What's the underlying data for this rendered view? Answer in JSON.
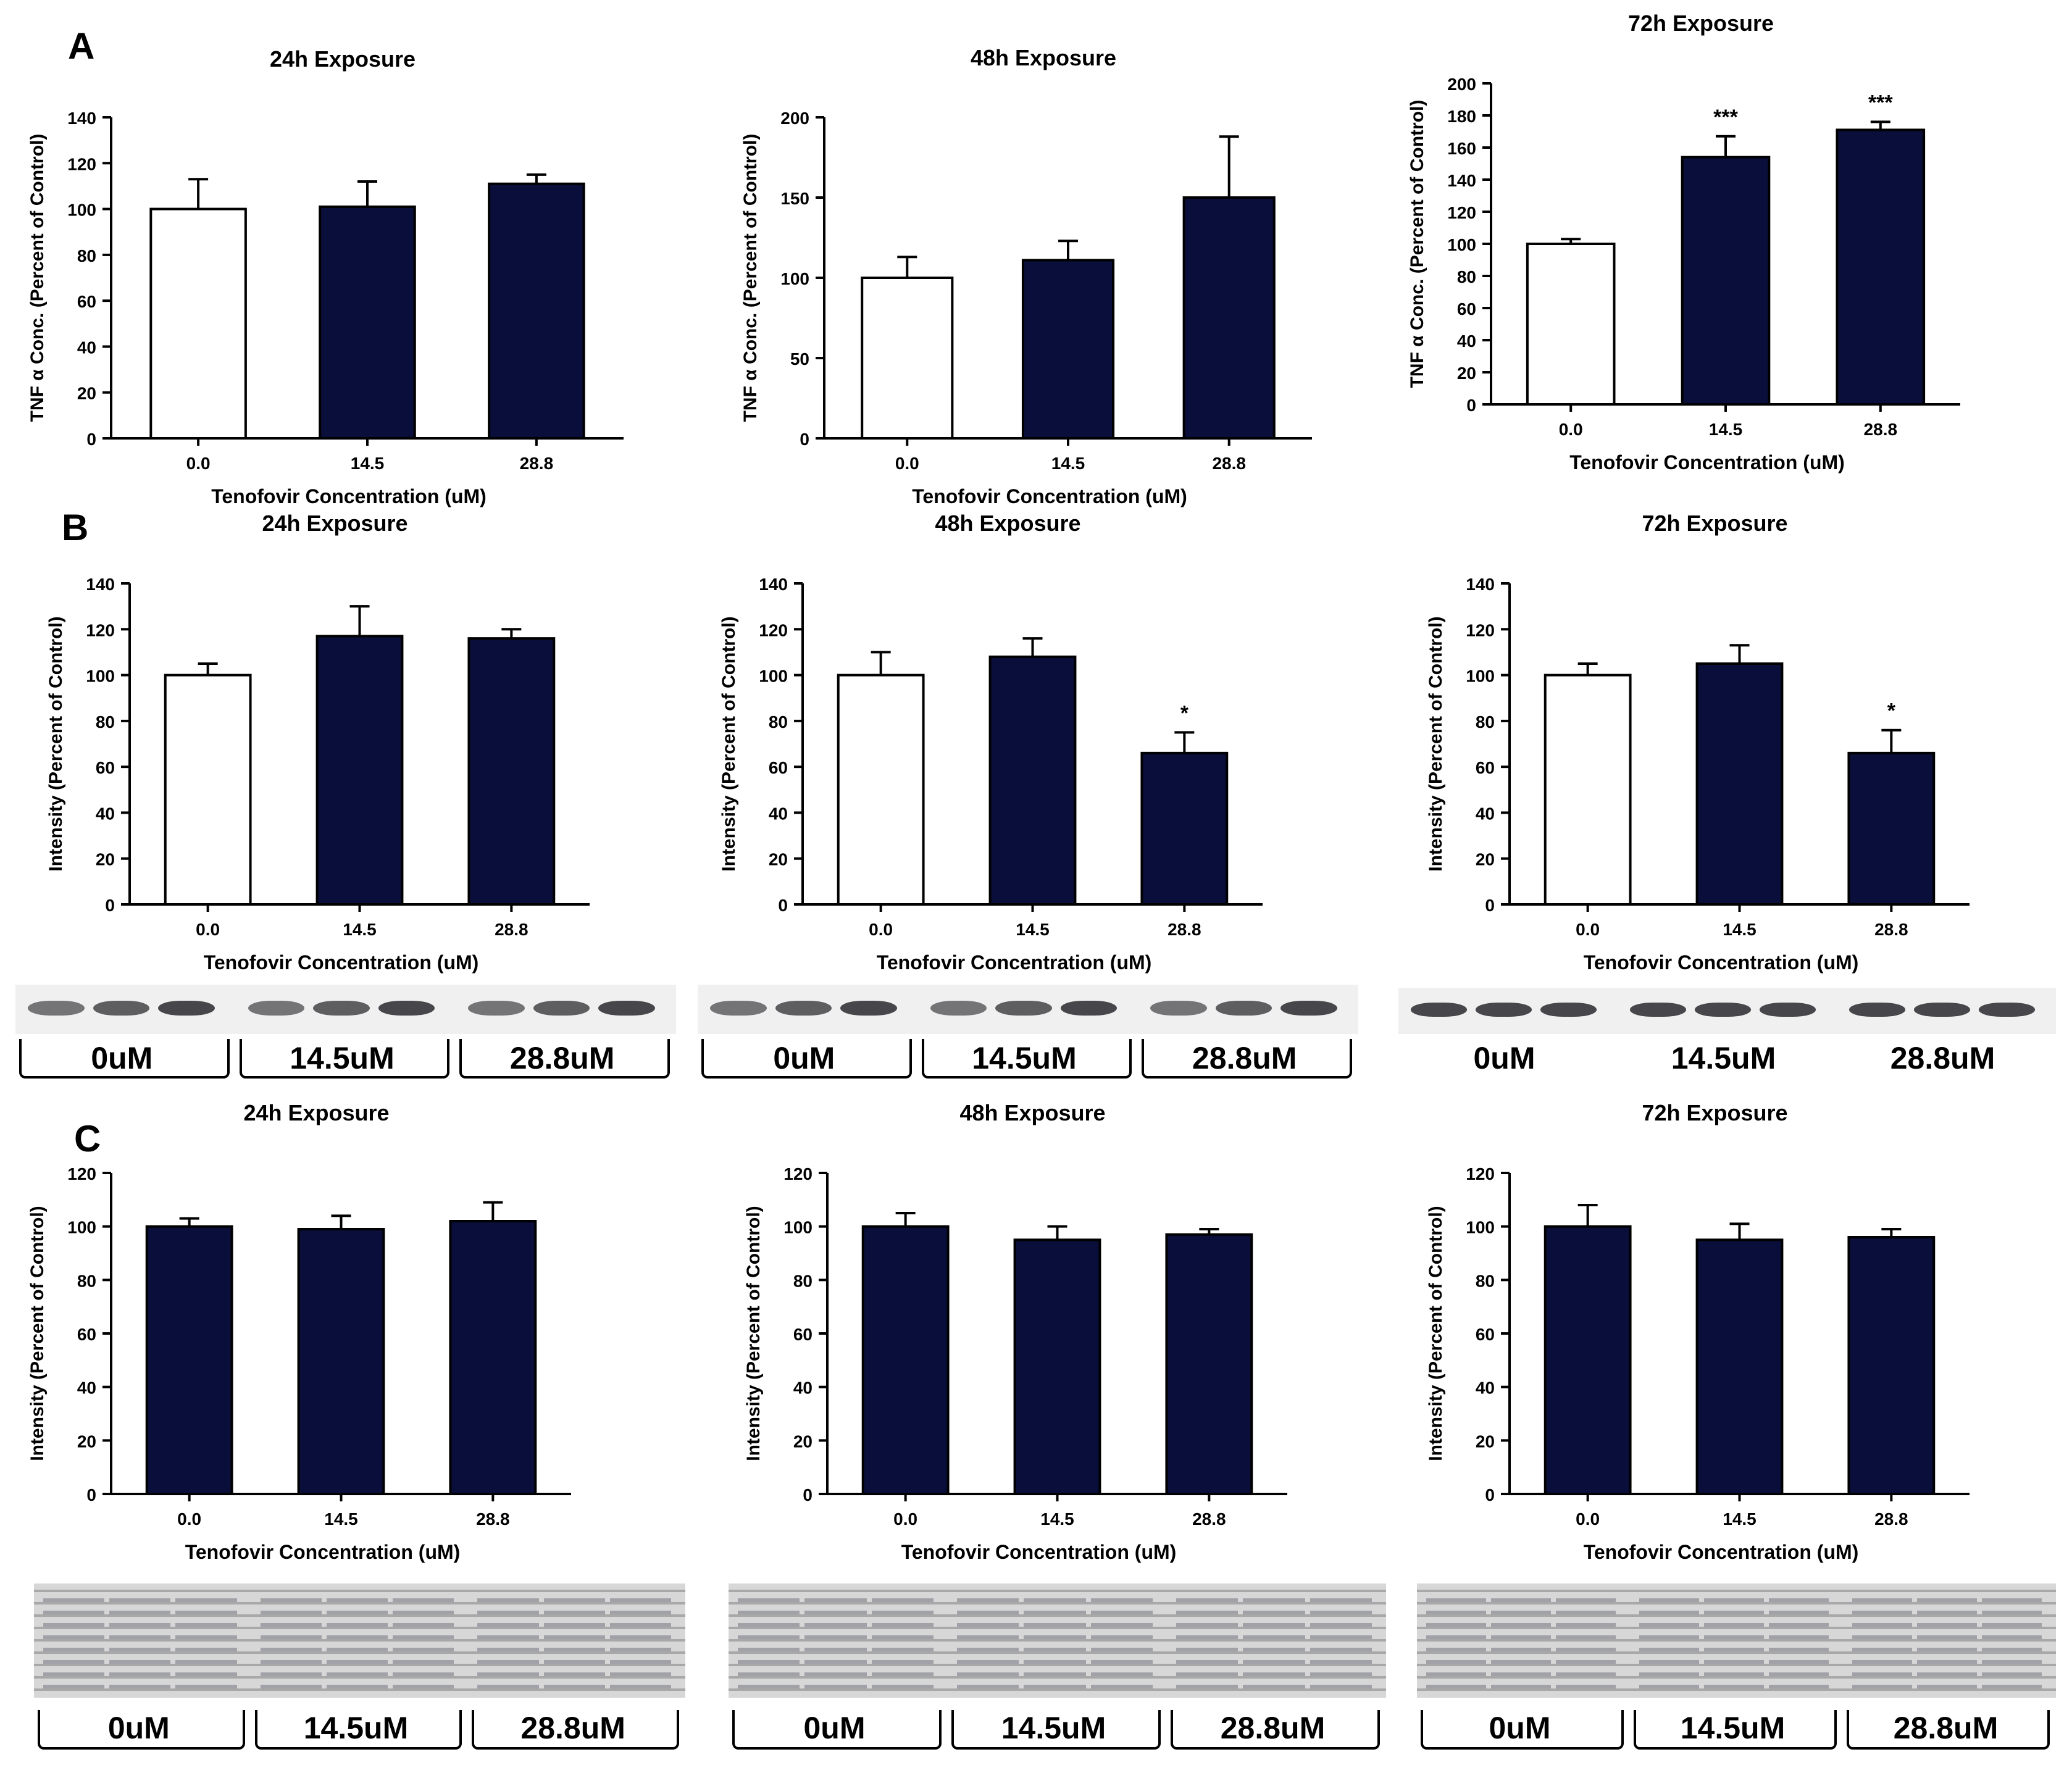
{
  "panel_letters": {
    "a": "A",
    "b": "B",
    "c": "C"
  },
  "colors": {
    "filled_bar": "#0a0e3a",
    "control_bar": "#ffffff",
    "axis": "#000000"
  },
  "chart_data": [
    {
      "id": "A1",
      "type": "bar",
      "title": "24h Exposure",
      "xlabel": "Tenofovir Concentration (uM)",
      "ylabel": "TNF α Conc. (Percent of Control)",
      "categories": [
        "0.0",
        "14.5",
        "28.8"
      ],
      "values": [
        100,
        101,
        111
      ],
      "errors": [
        13,
        11,
        4
      ],
      "fills": [
        "white",
        "dark",
        "dark"
      ],
      "annotations": [
        "",
        "",
        ""
      ],
      "ylim": [
        0,
        140
      ],
      "yticks": [
        0,
        20,
        40,
        60,
        80,
        100,
        120,
        140
      ]
    },
    {
      "id": "A2",
      "type": "bar",
      "title": "48h Exposure",
      "xlabel": "Tenofovir Concentration (uM)",
      "ylabel": "TNF α Conc. (Percent of Control)",
      "categories": [
        "0.0",
        "14.5",
        "28.8"
      ],
      "values": [
        100,
        111,
        150
      ],
      "errors": [
        13,
        12,
        38
      ],
      "fills": [
        "white",
        "dark",
        "dark"
      ],
      "annotations": [
        "",
        "",
        ""
      ],
      "ylim": [
        0,
        200
      ],
      "yticks": [
        0,
        50,
        100,
        150,
        200
      ]
    },
    {
      "id": "A3",
      "type": "bar",
      "title": "72h Exposure",
      "xlabel": "Tenofovir Concentration (uM)",
      "ylabel": "TNF α Conc. (Percent of Control)",
      "categories": [
        "0.0",
        "14.5",
        "28.8"
      ],
      "values": [
        100,
        154,
        171
      ],
      "errors": [
        3,
        13,
        5
      ],
      "fills": [
        "white",
        "dark",
        "dark"
      ],
      "annotations": [
        "",
        "***",
        "***"
      ],
      "ylim": [
        0,
        200
      ],
      "yticks": [
        0,
        20,
        40,
        60,
        80,
        100,
        120,
        140,
        160,
        180,
        200
      ]
    },
    {
      "id": "B1",
      "type": "bar",
      "title": "24h Exposure",
      "xlabel": "Tenofovir Concentration (uM)",
      "ylabel": "Intensity (Percent of Control)",
      "categories": [
        "0.0",
        "14.5",
        "28.8"
      ],
      "values": [
        100,
        117,
        116
      ],
      "errors": [
        5,
        13,
        4
      ],
      "fills": [
        "white",
        "dark",
        "dark"
      ],
      "annotations": [
        "",
        "",
        ""
      ],
      "ylim": [
        0,
        140
      ],
      "yticks": [
        0,
        20,
        40,
        60,
        80,
        100,
        120,
        140
      ]
    },
    {
      "id": "B2",
      "type": "bar",
      "title": "48h Exposure",
      "xlabel": "Tenofovir Concentration (uM)",
      "ylabel": "Intensity (Percent of Control)",
      "categories": [
        "0.0",
        "14.5",
        "28.8"
      ],
      "values": [
        100,
        108,
        66
      ],
      "errors": [
        10,
        8,
        9
      ],
      "fills": [
        "white",
        "dark",
        "dark"
      ],
      "annotations": [
        "",
        "",
        "*"
      ],
      "ylim": [
        0,
        140
      ],
      "yticks": [
        0,
        20,
        40,
        60,
        80,
        100,
        120,
        140
      ]
    },
    {
      "id": "B3",
      "type": "bar",
      "title": "72h Exposure",
      "xlabel": "Tenofovir Concentration (uM)",
      "ylabel": "Intensity (Percent of Control)",
      "categories": [
        "0.0",
        "14.5",
        "28.8"
      ],
      "values": [
        100,
        105,
        66
      ],
      "errors": [
        5,
        8,
        10
      ],
      "fills": [
        "white",
        "dark",
        "dark"
      ],
      "annotations": [
        "",
        "",
        "*"
      ],
      "ylim": [
        0,
        140
      ],
      "yticks": [
        0,
        20,
        40,
        60,
        80,
        100,
        120,
        140
      ]
    },
    {
      "id": "C1",
      "type": "bar",
      "title": "24h Exposure",
      "xlabel": "Tenofovir Concentration (uM)",
      "ylabel": "Intensity (Percent of Control)",
      "categories": [
        "0.0",
        "14.5",
        "28.8"
      ],
      "values": [
        100,
        99,
        102
      ],
      "errors": [
        3,
        5,
        7
      ],
      "fills": [
        "dark",
        "dark",
        "dark"
      ],
      "annotations": [
        "",
        "",
        ""
      ],
      "ylim": [
        0,
        120
      ],
      "yticks": [
        0,
        20,
        40,
        60,
        80,
        100,
        120
      ]
    },
    {
      "id": "C2",
      "type": "bar",
      "title": "48h Exposure",
      "xlabel": "Tenofovir Concentration (uM)",
      "ylabel": "Intensity (Percent of Control)",
      "categories": [
        "0.0",
        "14.5",
        "28.8"
      ],
      "values": [
        100,
        95,
        97
      ],
      "errors": [
        5,
        5,
        2
      ],
      "fills": [
        "dark",
        "dark",
        "dark"
      ],
      "annotations": [
        "",
        "",
        ""
      ],
      "ylim": [
        0,
        120
      ],
      "yticks": [
        0,
        20,
        40,
        60,
        80,
        100,
        120
      ]
    },
    {
      "id": "C3",
      "type": "bar",
      "title": "72h Exposure",
      "xlabel": "Tenofovir Concentration (uM)",
      "ylabel": "Intensity (Percent of Control)",
      "categories": [
        "0.0",
        "14.5",
        "28.8"
      ],
      "values": [
        100,
        95,
        96
      ],
      "errors": [
        8,
        6,
        3
      ],
      "fills": [
        "dark",
        "dark",
        "dark"
      ],
      "annotations": [
        "",
        "",
        ""
      ],
      "ylim": [
        0,
        120
      ],
      "yticks": [
        0,
        20,
        40,
        60,
        80,
        100,
        120
      ]
    }
  ],
  "blot_labels": [
    "0uM",
    "14.5uM",
    "28.8uM"
  ]
}
